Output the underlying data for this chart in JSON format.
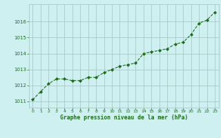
{
  "x": [
    0,
    1,
    2,
    3,
    4,
    5,
    6,
    7,
    8,
    9,
    10,
    11,
    12,
    13,
    14,
    15,
    16,
    17,
    18,
    19,
    20,
    21,
    22,
    23
  ],
  "y": [
    1011.1,
    1011.6,
    1012.1,
    1012.4,
    1012.4,
    1012.3,
    1012.3,
    1012.5,
    1012.5,
    1012.8,
    1013.0,
    1013.2,
    1013.3,
    1013.4,
    1014.0,
    1014.1,
    1014.2,
    1014.3,
    1014.6,
    1014.7,
    1015.2,
    1015.9,
    1016.1,
    1016.6
  ],
  "line_color": "#1a6b1a",
  "marker_color": "#1a6b1a",
  "bg_color": "#cff0f0",
  "grid_color": "#a8c8c8",
  "xlabel": "Graphe pression niveau de la mer (hPa)",
  "xlabel_color": "#1a6b1a",
  "tick_color": "#1a6b1a",
  "ylim_min": 1010.6,
  "ylim_max": 1017.1,
  "yticks": [
    1011,
    1012,
    1013,
    1014,
    1015,
    1016
  ],
  "xticks": [
    0,
    1,
    2,
    3,
    4,
    5,
    6,
    7,
    8,
    9,
    10,
    11,
    12,
    13,
    14,
    15,
    16,
    17,
    18,
    19,
    20,
    21,
    22,
    23
  ],
  "figsize": [
    3.2,
    2.0
  ],
  "dpi": 100
}
